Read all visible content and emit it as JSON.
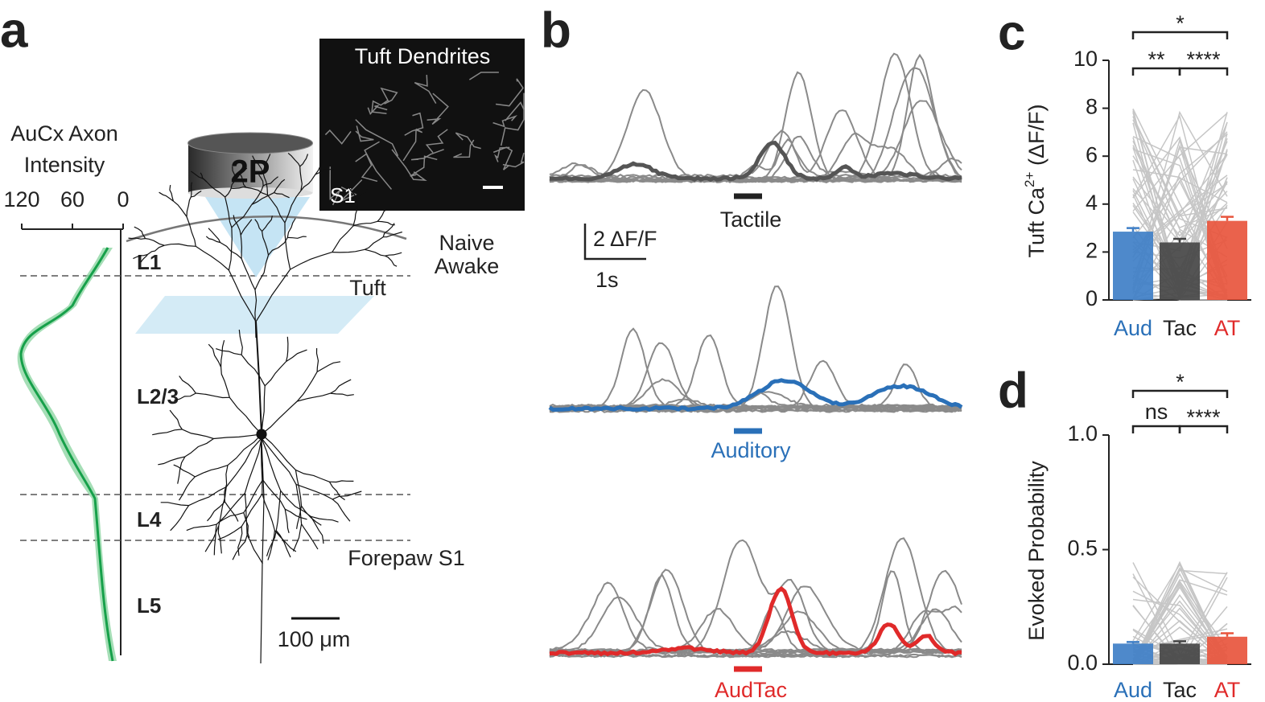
{
  "panel_a": {
    "label": "a",
    "axis_title": [
      "AuCx Axon",
      "Intensity"
    ],
    "xlim": [
      120,
      0
    ],
    "xticks": [
      120,
      60,
      0
    ],
    "layers": [
      "L1",
      "L2/3",
      "L4",
      "L5"
    ],
    "objective": "2P",
    "image_title": "Tuft Dendrites",
    "image_region": "S1",
    "state": [
      "Naive",
      "Awake"
    ],
    "tuft": "Tuft",
    "region": "Forepaw S1",
    "scale_bar": "100 μm"
  },
  "panel_b": {
    "label": "b",
    "stimuli": [
      "Tactile",
      "Auditory",
      "AudTac"
    ],
    "stimulus_colors": [
      "#222222",
      "#2a70b8",
      "#e02a2a"
    ],
    "scale_y": "2 ΔF/F",
    "scale_x": "1s"
  },
  "chart_data": [
    {
      "type": "bar",
      "panel": "c",
      "y_label": [
        "Tuft Ca",
        "2+",
        " (ΔF/F)"
      ],
      "categories": [
        "Aud",
        "Tac",
        "AT"
      ],
      "colors": [
        "#3f7fc7",
        "#454545",
        "#e8553d"
      ],
      "label_colors": [
        "#2a70b8",
        "#222222",
        "#e02a2a"
      ],
      "values": [
        2.85,
        2.4,
        3.3
      ],
      "errors": [
        0.15,
        0.15,
        0.17
      ],
      "ylim": [
        0,
        10
      ],
      "yticks": [
        0,
        2,
        4,
        6,
        8,
        10
      ],
      "significance": [
        {
          "pair": [
            "Aud",
            "AT"
          ],
          "label": "*"
        },
        {
          "pair": [
            "Aud",
            "Tac"
          ],
          "label": "**"
        },
        {
          "pair": [
            "Tac",
            "AT"
          ],
          "label": "****"
        }
      ]
    },
    {
      "type": "bar",
      "panel": "d",
      "y_label": [
        "Evoked Probability"
      ],
      "categories": [
        "Aud",
        "Tac",
        "AT"
      ],
      "colors": [
        "#3f7fc7",
        "#454545",
        "#e8553d"
      ],
      "label_colors": [
        "#2a70b8",
        "#222222",
        "#e02a2a"
      ],
      "values": [
        0.09,
        0.09,
        0.12
      ],
      "errors": [
        0.007,
        0.01,
        0.015
      ],
      "ylim": [
        0,
        1
      ],
      "yticks": [
        {
          "value": 0,
          "label": "0.0"
        },
        {
          "value": 0.5,
          "label": "0.5"
        },
        {
          "value": 1,
          "label": "1.0"
        }
      ],
      "significance": [
        {
          "pair": [
            "Aud",
            "AT"
          ],
          "label": "*"
        },
        {
          "pair": [
            "Aud",
            "Tac"
          ],
          "label": "ns"
        },
        {
          "pair": [
            "Tac",
            "AT"
          ],
          "label": "****"
        }
      ]
    }
  ]
}
